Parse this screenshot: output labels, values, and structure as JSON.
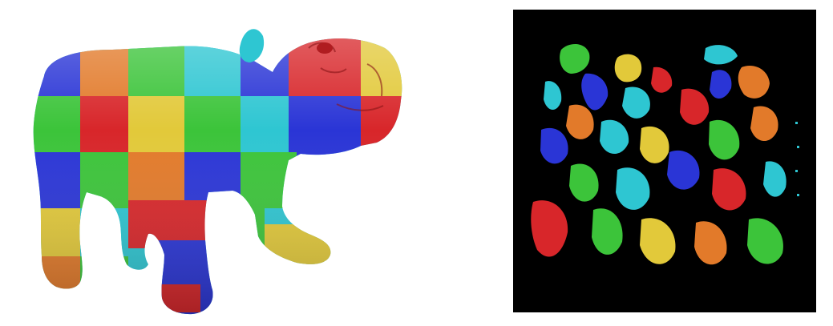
{
  "figure": {
    "background": "#ffffff",
    "panels": [
      {
        "name": "textured-3d-bulldog-model",
        "kind": "3d-render"
      },
      {
        "name": "uv-texture-atlas",
        "kind": "uv-chart-atlas",
        "background": "#000000"
      }
    ]
  },
  "palette": {
    "red": "#d8262a",
    "blue": "#2a35d6",
    "green": "#3cc43a",
    "cyan": "#2ec6d2",
    "yellow": "#e2c93a",
    "orange": "#e27a2a",
    "black": "#000000"
  }
}
